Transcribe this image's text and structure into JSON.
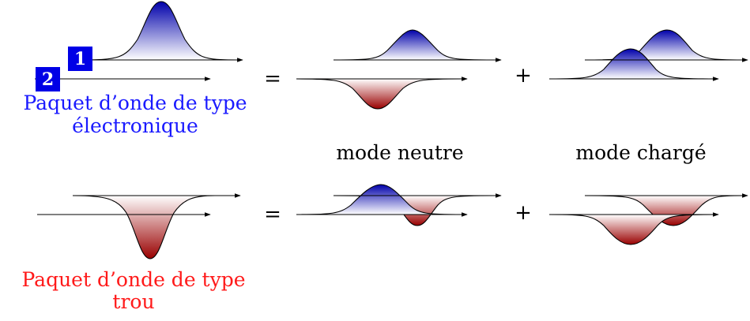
{
  "labels": {
    "electron_packet": [
      "Paquet d’onde de type",
      "électronique"
    ],
    "hole_packet": [
      "Paquet d’onde de type",
      "trou"
    ],
    "neutral_mode": "mode neutre",
    "charged_mode": "mode chargé",
    "equals": "=",
    "plus": "+",
    "channel_1": "1",
    "channel_2": "2"
  },
  "colors": {
    "electron_text": "#1a1aff",
    "hole_text": "#ff1a1a",
    "badge": "#0000e6",
    "electron_fill_top": "#0000aa",
    "electron_fill_bottom": "#ffffff",
    "hole_fill_top": "#ffffff",
    "hole_fill_bottom": "#990000",
    "line": "#000000"
  }
}
